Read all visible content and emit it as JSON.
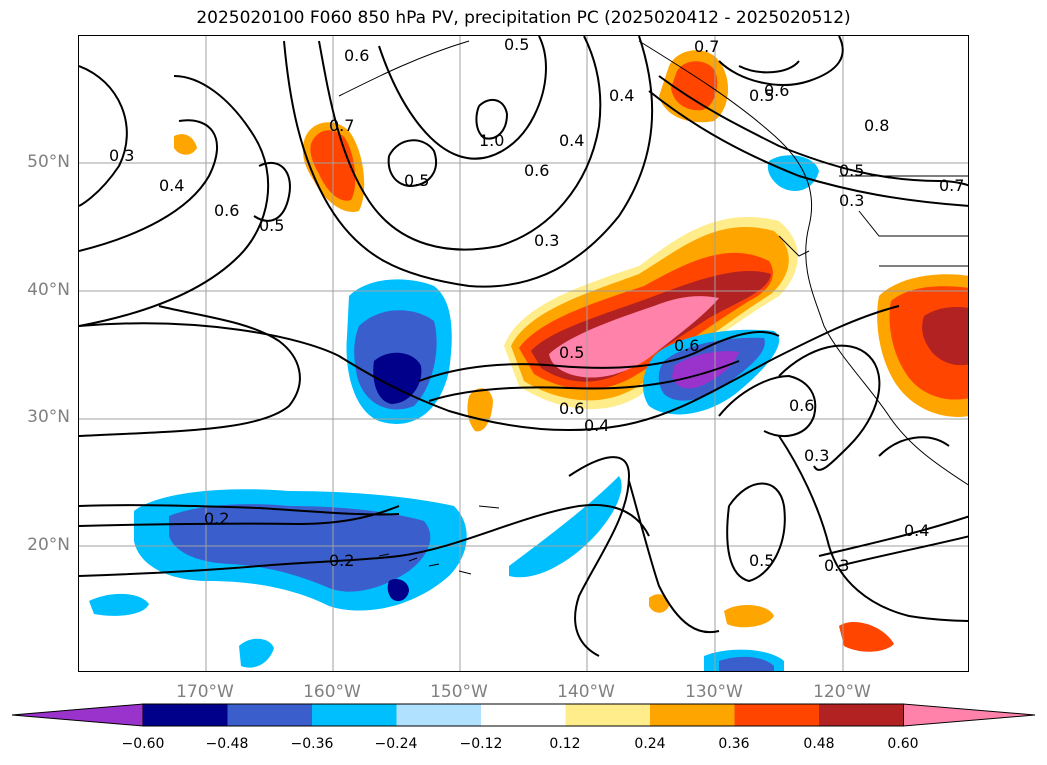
{
  "title": "2025020100 F060 850 hPa PV, precipitation PC (2025020412 - 2025020512)",
  "lat_labels": [
    "50°N",
    "40°N",
    "30°N",
    "20°N"
  ],
  "lon_labels": [
    "170°W",
    "160°W",
    "150°W",
    "140°W",
    "130°W",
    "120°W"
  ],
  "contour_labels": [
    "0.7",
    "0.5",
    "0.3",
    "0.4",
    "0.6",
    "0.5",
    "0.6",
    "1.0",
    "0.5",
    "0.6",
    "0.4",
    "0.3",
    "0.7",
    "0.4",
    "0.5",
    "0.6",
    "0.8",
    "0.5",
    "0.3",
    "0.7",
    "0.5",
    "0.6",
    "0.4",
    "0.6",
    "0.6",
    "0.3",
    "0.2",
    "0.2",
    "0.5",
    "0.3",
    "0.4"
  ],
  "colorbar": {
    "ticks": [
      "−0.60",
      "−0.48",
      "−0.36",
      "−0.24",
      "−0.12",
      "0.12",
      "0.24",
      "0.36",
      "0.48",
      "0.60"
    ],
    "colors": [
      "#9933cc",
      "#00008b",
      "#3a5fcd",
      "#00bfff",
      "#b0e2ff",
      "#ffffff",
      "#ffec8b",
      "#ffa500",
      "#ff4500",
      "#b22222",
      "#ff82ab"
    ]
  },
  "colors": {
    "contour": "#000000",
    "coastline": "#000000",
    "gridline": "#a0a0a0"
  }
}
